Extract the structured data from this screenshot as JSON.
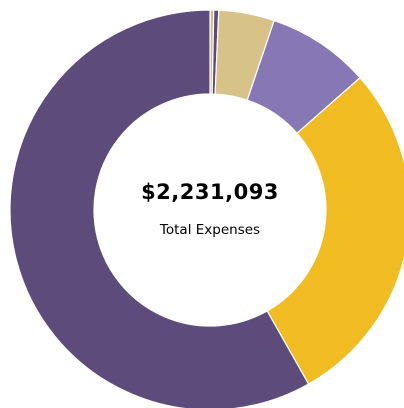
{
  "chart_data": {
    "type": "pie",
    "categories": [
      "",
      "",
      "",
      "",
      "",
      ""
    ],
    "values": [
      0.3,
      0.4,
      4.5,
      8.3,
      28.3,
      58.2
    ],
    "colors": [
      "#d3c082",
      "#5b4a7c",
      "#d7c287",
      "#8677b5",
      "#f0bc21",
      "#5d4b7c"
    ],
    "start_angle_deg": 0,
    "direction": "clockwise",
    "donut": true,
    "legend": "none",
    "center_value": "$2,231,093",
    "center_label": "Total Expenses"
  }
}
